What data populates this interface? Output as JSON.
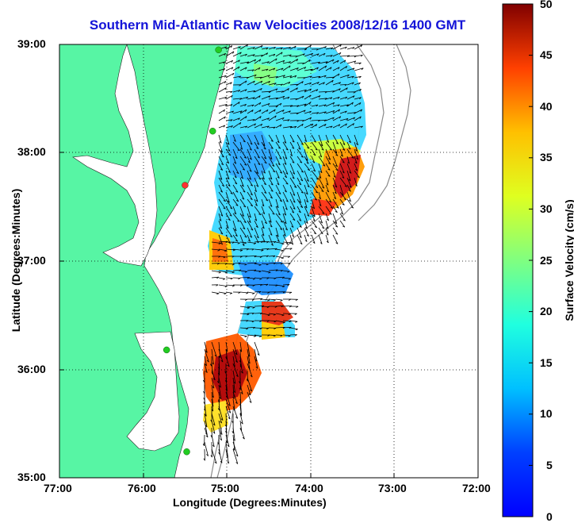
{
  "title": "Southern Mid-Atlantic Raw Velocities 2008/12/16 1400 GMT",
  "xlabel": "Longitude (Degrees:Minutes)",
  "ylabel": "Latitude (Degrees:Minutes)",
  "colorbar_label": "Surface Velocity (cm/s)",
  "x_ticks": [
    "77:00",
    "76:00",
    "75:00",
    "74:00",
    "73:00",
    "72:00"
  ],
  "y_ticks": [
    "39:00",
    "38:00",
    "37:00",
    "36:00",
    "35:00"
  ],
  "colorbar_ticks": [
    "50",
    "45",
    "40",
    "35",
    "30",
    "25",
    "20",
    "15",
    "10",
    "5",
    "0"
  ],
  "map_data": {
    "lon_range": [
      -77,
      -72
    ],
    "lat_range": [
      35,
      39
    ],
    "velocity_range_cm_s": [
      0,
      50
    ],
    "colormap": "jet",
    "land_color": "#57f5a4",
    "grid": "dotted",
    "stations": [
      {
        "lon": -75.1,
        "lat": 38.95,
        "color": "#22cc22"
      },
      {
        "lon": -75.17,
        "lat": 38.2,
        "color": "#22cc22"
      },
      {
        "lon": -75.5,
        "lat": 37.7,
        "color": "#ff3030"
      },
      {
        "lon": -75.72,
        "lat": 36.18,
        "color": "#22cc22"
      },
      {
        "lon": -75.48,
        "lat": 35.24,
        "color": "#22cc22"
      }
    ]
  }
}
